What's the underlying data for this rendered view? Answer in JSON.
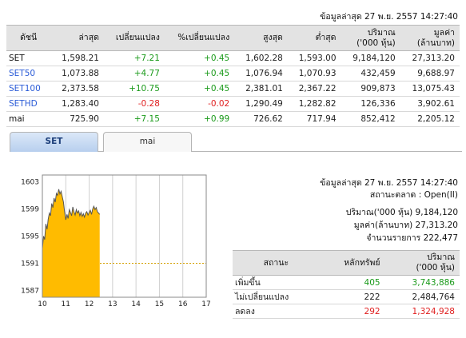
{
  "header": {
    "last_update": "ข้อมูลล่าสุด 27 พ.ย. 2557 14:27:40"
  },
  "index_table": {
    "columns": [
      "ดัชนี",
      "ล่าสุด",
      "เปลี่ยนแปลง",
      "%เปลี่ยนแปลง",
      "สูงสุด",
      "ต่ำสุด",
      "ปริมาณ\n('000 หุ้น)",
      "มูลค่า\n(ล้านบาท)"
    ],
    "rows": [
      {
        "name": "SET",
        "last": "1,598.21",
        "chg": "+7.21",
        "pct": "+0.45",
        "high": "1,602.28",
        "low": "1,593.00",
        "vol": "9,184,120",
        "val": "27,313.20"
      },
      {
        "name": "SET50",
        "last": "1,073.88",
        "chg": "+4.77",
        "pct": "+0.45",
        "high": "1,076.94",
        "low": "1,070.93",
        "vol": "432,459",
        "val": "9,688.97"
      },
      {
        "name": "SET100",
        "last": "2,373.58",
        "chg": "+10.75",
        "pct": "+0.45",
        "high": "2,381.01",
        "low": "2,367.22",
        "vol": "909,873",
        "val": "13,075.43"
      },
      {
        "name": "SETHD",
        "last": "1,283.40",
        "chg": "-0.28",
        "pct": "-0.02",
        "high": "1,290.49",
        "low": "1,282.82",
        "vol": "126,336",
        "val": "3,902.61"
      },
      {
        "name": "mai",
        "last": "725.90",
        "chg": "+7.15",
        "pct": "+0.99",
        "high": "726.62",
        "low": "717.94",
        "vol": "852,412",
        "val": "2,205.12"
      }
    ]
  },
  "tabs": [
    {
      "label": "SET",
      "active": true
    },
    {
      "label": "mai",
      "active": false
    }
  ],
  "info": {
    "last_update": "ข้อมูลล่าสุด 27 พ.ย. 2557 14:27:40",
    "market_status": "สถานะตลาด : Open(II)",
    "volume": "ปริมาณ('000 หุ้น) 9,184,120",
    "value": "มูลค่า(ล้านบาท) 27,313.20",
    "trades": "จำนวนรายการ 222,477"
  },
  "stat_table": {
    "columns": [
      "สถานะ",
      "หลักทรัพย์",
      "ปริมาณ\n('000 หุ้น)"
    ],
    "rows": [
      {
        "status": "เพิ่มขึ้น",
        "count": "405",
        "vol": "3,743,886",
        "color": "#1a9a1a"
      },
      {
        "status": "ไม่เปลี่ยนแปลง",
        "count": "222",
        "vol": "2,484,764",
        "color": "#111111"
      },
      {
        "status": "ลดลง",
        "count": "292",
        "vol": "1,324,928",
        "color": "#e02020"
      }
    ]
  },
  "colors": {
    "up": "#1a9a1a",
    "down": "#e02020",
    "fill": "#ffbb00",
    "link": "#2a5bd7"
  },
  "chart_data": {
    "type": "area",
    "title": "",
    "xlabel": "",
    "ylabel": "",
    "xlim": [
      10,
      17
    ],
    "ylim": [
      1586,
      1604
    ],
    "x_ticks": [
      10,
      11,
      12,
      13,
      14,
      15,
      16,
      17
    ],
    "x_tick_labels": [
      "10",
      "11",
      "12",
      "13",
      "14",
      "15",
      "16",
      "17"
    ],
    "y_ticks": [
      1587,
      1591,
      1595,
      1599,
      1603
    ],
    "y_tick_labels": [
      "1587",
      "1591",
      "1595",
      "1599",
      "1603"
    ],
    "prev_close": 1591.0,
    "grid": true,
    "x": [
      10.0,
      10.05,
      10.1,
      10.15,
      10.2,
      10.25,
      10.3,
      10.35,
      10.4,
      10.45,
      10.5,
      10.55,
      10.6,
      10.65,
      10.7,
      10.75,
      10.8,
      10.85,
      10.9,
      10.95,
      11.0,
      11.05,
      11.1,
      11.15,
      11.2,
      11.25,
      11.3,
      11.35,
      11.4,
      11.45,
      11.5,
      11.55,
      11.6,
      11.65,
      11.7,
      11.75,
      11.8,
      11.85,
      11.9,
      11.95,
      12.0,
      12.05,
      12.1,
      12.15,
      12.2,
      12.25,
      12.3,
      12.35,
      12.4,
      12.45
    ],
    "y": [
      1593.2,
      1595.0,
      1594.5,
      1596.8,
      1596.0,
      1597.5,
      1598.4,
      1598.0,
      1599.8,
      1599.2,
      1600.6,
      1600.0,
      1601.3,
      1601.0,
      1601.9,
      1601.2,
      1601.6,
      1600.8,
      1600.0,
      1598.6,
      1597.4,
      1598.2,
      1597.6,
      1598.9,
      1598.5,
      1598.0,
      1599.3,
      1598.6,
      1598.1,
      1598.9,
      1598.4,
      1598.7,
      1598.0,
      1598.5,
      1597.9,
      1598.3,
      1597.8,
      1598.4,
      1598.6,
      1598.1,
      1598.5,
      1598.8,
      1598.2,
      1599.0,
      1599.4,
      1598.9,
      1599.2,
      1598.6,
      1598.4,
      1598.2
    ]
  }
}
